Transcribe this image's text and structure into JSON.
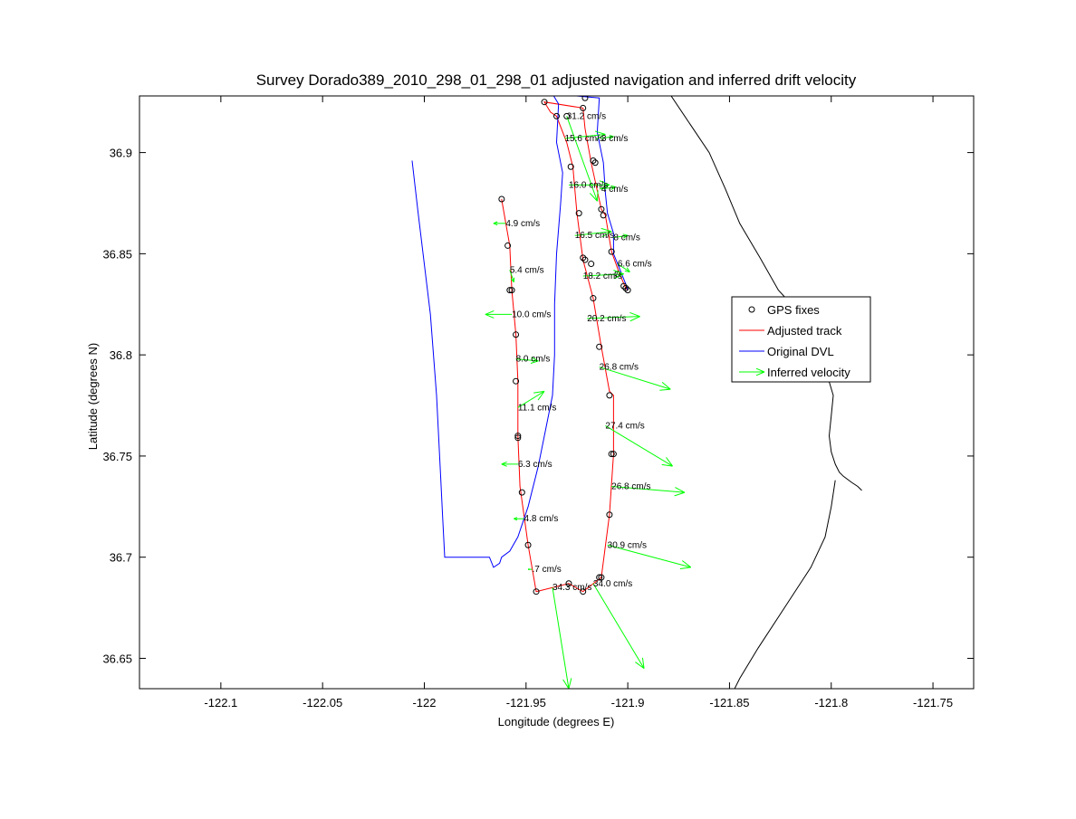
{
  "colors": {
    "adjusted": "#ff0000",
    "dvl": "#0000ff",
    "velocity": "#00ff00",
    "coast": "#000000",
    "fix": "#000000"
  },
  "chart_data": {
    "type": "line",
    "title": "Survey Dorado389_2010_298_01_298_01 adjusted navigation and inferred drift velocity",
    "xlabel": "Longitude (degrees E)",
    "ylabel": "Latitude (degrees N)",
    "xlim": [
      -122.14,
      -121.73
    ],
    "ylim": [
      36.635,
      36.928
    ],
    "xticks": [
      -122.1,
      -122.05,
      -122,
      -121.95,
      -121.9,
      -121.85,
      -121.8,
      -121.75
    ],
    "xtick_labels": [
      "-122.1",
      "-122.05",
      "-122",
      "-121.95",
      "-121.9",
      "-121.85",
      "-121.8",
      "-121.75"
    ],
    "yticks": [
      36.65,
      36.7,
      36.75,
      36.8,
      36.85,
      36.9
    ],
    "ytick_labels": [
      "36.65",
      "36.7",
      "36.75",
      "36.8",
      "36.85",
      "36.9"
    ],
    "grid": false,
    "legend_position": "right",
    "legend": [
      {
        "label": "GPS fixes",
        "style": "marker"
      },
      {
        "label": "Adjusted track",
        "style": "red-line"
      },
      {
        "label": "Original DVL",
        "style": "blue-line"
      },
      {
        "label": "Inferred velocity",
        "style": "arrow"
      }
    ],
    "series": [
      {
        "name": "Adjusted track",
        "x": [
          -121.962,
          -121.958,
          -121.957,
          -121.955,
          -121.954,
          -121.954,
          -121.953,
          -121.949,
          -121.945,
          -121.929,
          -121.922,
          -121.913,
          -121.909,
          -121.907,
          -121.907,
          -121.909,
          -121.913,
          -121.917,
          -121.922,
          -121.925,
          -121.927,
          -121.93,
          -121.935,
          -121.938,
          -121.941,
          -121.922,
          -121.921,
          -121.918,
          -121.913,
          -121.911,
          -121.908,
          -121.904,
          -121.901,
          -121.9
        ],
        "y": [
          36.877,
          36.854,
          36.832,
          36.81,
          36.787,
          36.76,
          36.735,
          36.706,
          36.683,
          36.687,
          36.683,
          36.69,
          36.721,
          36.751,
          36.78,
          36.782,
          36.804,
          36.828,
          36.847,
          36.87,
          36.893,
          36.905,
          36.918,
          36.92,
          36.925,
          36.922,
          36.912,
          36.895,
          36.872,
          36.869,
          36.851,
          36.84,
          36.833,
          36.832
        ]
      },
      {
        "name": "Original DVL",
        "x": [
          -122.006,
          -122.003,
          -121.997,
          -121.994,
          -121.992,
          -121.991,
          -121.99,
          -121.968,
          -121.966,
          -121.963,
          -121.962,
          -121.958,
          -121.954,
          -121.949,
          -121.944,
          -121.94,
          -121.937,
          -121.936,
          -121.936,
          -121.935,
          -121.933,
          -121.932,
          -121.935,
          -121.934,
          -121.937,
          -121.914,
          -121.915,
          -121.912,
          -121.911,
          -121.91,
          -121.907,
          -121.907,
          -121.903,
          -121.901,
          -121.9
        ],
        "y": [
          36.896,
          36.87,
          36.82,
          36.78,
          36.74,
          36.72,
          36.7,
          36.7,
          36.695,
          36.697,
          36.7,
          36.703,
          36.71,
          36.725,
          36.745,
          36.765,
          36.78,
          36.8,
          36.825,
          36.85,
          36.875,
          36.89,
          36.905,
          36.924,
          36.929,
          36.927,
          36.91,
          36.895,
          36.88,
          36.87,
          36.86,
          36.85,
          36.84,
          36.835,
          36.832
        ]
      },
      {
        "name": "Coastline",
        "x": [
          -121.88,
          -121.87,
          -121.86,
          -121.852,
          -121.845,
          -121.835,
          -121.826,
          -121.815,
          -121.806,
          -121.803,
          -121.802,
          -121.799,
          -121.8,
          -121.801,
          -121.8,
          -121.798,
          -121.796,
          -121.794,
          -121.79,
          -121.787,
          -121.785
        ],
        "y": [
          36.93,
          36.915,
          36.9,
          36.882,
          36.865,
          36.848,
          36.832,
          36.82,
          36.81,
          36.8,
          36.79,
          36.78,
          36.77,
          36.76,
          36.752,
          36.746,
          36.742,
          36.74,
          36.737,
          36.735,
          36.733
        ]
      },
      {
        "name": "Coastline south",
        "x": [
          -121.849,
          -121.845,
          -121.836,
          -121.823,
          -121.81,
          -121.803,
          -121.8,
          -121.798
        ],
        "y": [
          36.632,
          36.64,
          36.655,
          36.675,
          36.695,
          36.71,
          36.725,
          36.738
        ]
      }
    ],
    "gps_fixes": {
      "x": [
        -121.962,
        -121.959,
        -121.958,
        -121.957,
        -121.955,
        -121.955,
        -121.954,
        -121.954,
        -121.952,
        -121.949,
        -121.945,
        -121.929,
        -121.922,
        -121.914,
        -121.913,
        -121.909,
        -121.907,
        -121.908,
        -121.909,
        -121.914,
        -121.917,
        -121.918,
        -121.921,
        -121.922,
        -121.924,
        -121.928,
        -121.93,
        -121.935,
        -121.941,
        -121.922,
        -121.921,
        -121.917,
        -121.916,
        -121.913,
        -121.912,
        -121.908,
        -121.905,
        -121.902,
        -121.901,
        -121.9
      ],
      "y": [
        36.877,
        36.854,
        36.832,
        36.832,
        36.81,
        36.787,
        36.76,
        36.759,
        36.732,
        36.706,
        36.683,
        36.687,
        36.683,
        36.69,
        36.69,
        36.721,
        36.751,
        36.751,
        36.78,
        36.804,
        36.828,
        36.845,
        36.847,
        36.848,
        36.87,
        36.893,
        36.918,
        36.918,
        36.925,
        36.922,
        36.927,
        36.896,
        36.895,
        36.872,
        36.869,
        36.851,
        36.84,
        36.834,
        36.833,
        36.832
      ]
    },
    "velocity_vectors": [
      {
        "label": "31.2 cm/s",
        "x": -121.93,
        "y": 36.918,
        "u": 0.015,
        "v": -0.042
      },
      {
        "label": "15.6 cm/s",
        "x": -121.931,
        "y": 36.907,
        "u": 0.02,
        "v": 0.002
      },
      {
        "label": "3 cm/s",
        "x": -121.913,
        "y": 36.907,
        "u": 0.006,
        "v": 0.001
      },
      {
        "label": "16.0 cm/s",
        "x": -121.929,
        "y": 36.884,
        "u": 0.02,
        "v": 0.0
      },
      {
        "label": "4 cm/s",
        "x": -121.913,
        "y": 36.882,
        "u": 0.007,
        "v": 0.001
      },
      {
        "label": "4.9 cm/s",
        "x": -121.96,
        "y": 36.865,
        "u": -0.006,
        "v": 0.0
      },
      {
        "label": "16.5 cm/s",
        "x": -121.926,
        "y": 36.859,
        "u": 0.018,
        "v": 0.002
      },
      {
        "label": "8 cm/s",
        "x": -121.907,
        "y": 36.858,
        "u": 0.007,
        "v": 0.001
      },
      {
        "label": "6.6 cm/s",
        "x": -121.905,
        "y": 36.845,
        "u": 0.006,
        "v": -0.004
      },
      {
        "label": "5.4 cm/s",
        "x": -121.958,
        "y": 36.842,
        "u": 0.002,
        "v": -0.006
      },
      {
        "label": "18.2 cm/s",
        "x": -121.922,
        "y": 36.839,
        "u": 0.02,
        "v": 0.001
      },
      {
        "label": "10.0 cm/s",
        "x": -121.957,
        "y": 36.82,
        "u": -0.013,
        "v": 0.0
      },
      {
        "label": "20.2 cm/s",
        "x": -121.92,
        "y": 36.818,
        "u": 0.026,
        "v": 0.001
      },
      {
        "label": "8.0 cm/s",
        "x": -121.955,
        "y": 36.798,
        "u": 0.011,
        "v": -0.001
      },
      {
        "label": "26.8 cm/s",
        "x": -121.914,
        "y": 36.794,
        "u": 0.035,
        "v": -0.011
      },
      {
        "label": "11.1 cm/s",
        "x": -121.954,
        "y": 36.774,
        "u": 0.013,
        "v": 0.008
      },
      {
        "label": "27.4 cm/s",
        "x": -121.911,
        "y": 36.765,
        "u": 0.033,
        "v": -0.02
      },
      {
        "label": "6.3 cm/s",
        "x": -121.954,
        "y": 36.746,
        "u": -0.008,
        "v": 0.0
      },
      {
        "label": "26.8 cm/s",
        "x": -121.908,
        "y": 36.735,
        "u": 0.036,
        "v": -0.003
      },
      {
        "label": "4.8 cm/s",
        "x": -121.951,
        "y": 36.719,
        "u": -0.005,
        "v": 0.0
      },
      {
        "label": "30.9 cm/s",
        "x": -121.91,
        "y": 36.706,
        "u": 0.041,
        "v": -0.011
      },
      {
        "label": ".7 cm/s",
        "x": -121.947,
        "y": 36.694,
        "u": -0.002,
        "v": 0.0
      },
      {
        "label": "34.3 cm/s",
        "x": -121.937,
        "y": 36.685,
        "u": 0.008,
        "v": -0.05
      },
      {
        "label": "34.0 cm/s",
        "x": -121.917,
        "y": 36.687,
        "u": 0.025,
        "v": -0.042
      }
    ]
  }
}
